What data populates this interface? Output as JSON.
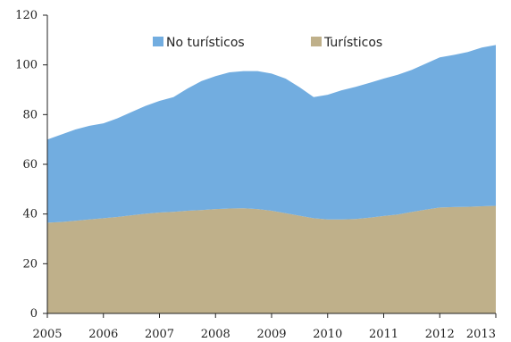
{
  "chart_data": {
    "type": "area",
    "stacked": true,
    "title": "",
    "xlabel": "",
    "ylabel": "",
    "xlim": [
      2005,
      2013
    ],
    "ylim": [
      0,
      120
    ],
    "x_ticks": [
      2005,
      2006,
      2007,
      2008,
      2009,
      2010,
      2011,
      2012,
      2013
    ],
    "y_ticks": [
      0,
      20,
      40,
      60,
      80,
      100,
      120
    ],
    "x_tick_labels": [
      "2005",
      "2006",
      "2007",
      "2008",
      "2009",
      "2010",
      "2011",
      "2012",
      "2013"
    ],
    "y_tick_labels": [
      "0",
      "20",
      "40",
      "60",
      "80",
      "100",
      "120"
    ],
    "grid": false,
    "legend_position": "top-center",
    "x": [
      2005.0,
      2005.25,
      2005.5,
      2005.75,
      2006.0,
      2006.25,
      2006.5,
      2006.75,
      2007.0,
      2007.25,
      2007.5,
      2007.75,
      2008.0,
      2008.25,
      2008.5,
      2008.75,
      2009.0,
      2009.25,
      2009.5,
      2009.75,
      2010.0,
      2010.25,
      2010.5,
      2010.75,
      2011.0,
      2011.25,
      2011.5,
      2011.75,
      2012.0,
      2012.25,
      2012.5,
      2012.75,
      2013.0
    ],
    "series": [
      {
        "name": "Turísticos",
        "color": "#bfb08a",
        "values": [
          36.5,
          36.8,
          37.3,
          37.8,
          38.3,
          38.8,
          39.5,
          40.1,
          40.6,
          40.9,
          41.3,
          41.6,
          42.0,
          42.2,
          42.3,
          42.0,
          41.3,
          40.3,
          39.3,
          38.3,
          37.8,
          37.8,
          38.0,
          38.5,
          39.2,
          39.8,
          40.8,
          41.8,
          42.6,
          42.8,
          42.9,
          43.1,
          43.3
        ]
      },
      {
        "name": "No turísticos",
        "color": "#72ade0",
        "values": [
          33.5,
          35.2,
          36.7,
          37.7,
          38.2,
          39.7,
          41.5,
          43.4,
          44.9,
          46.1,
          49.2,
          51.9,
          53.5,
          54.8,
          55.2,
          55.5,
          55.2,
          54.2,
          51.7,
          48.7,
          50.2,
          52.0,
          53.2,
          54.3,
          55.3,
          56.2,
          57.2,
          58.7,
          60.4,
          61.2,
          62.3,
          63.9,
          64.7
        ]
      }
    ]
  }
}
